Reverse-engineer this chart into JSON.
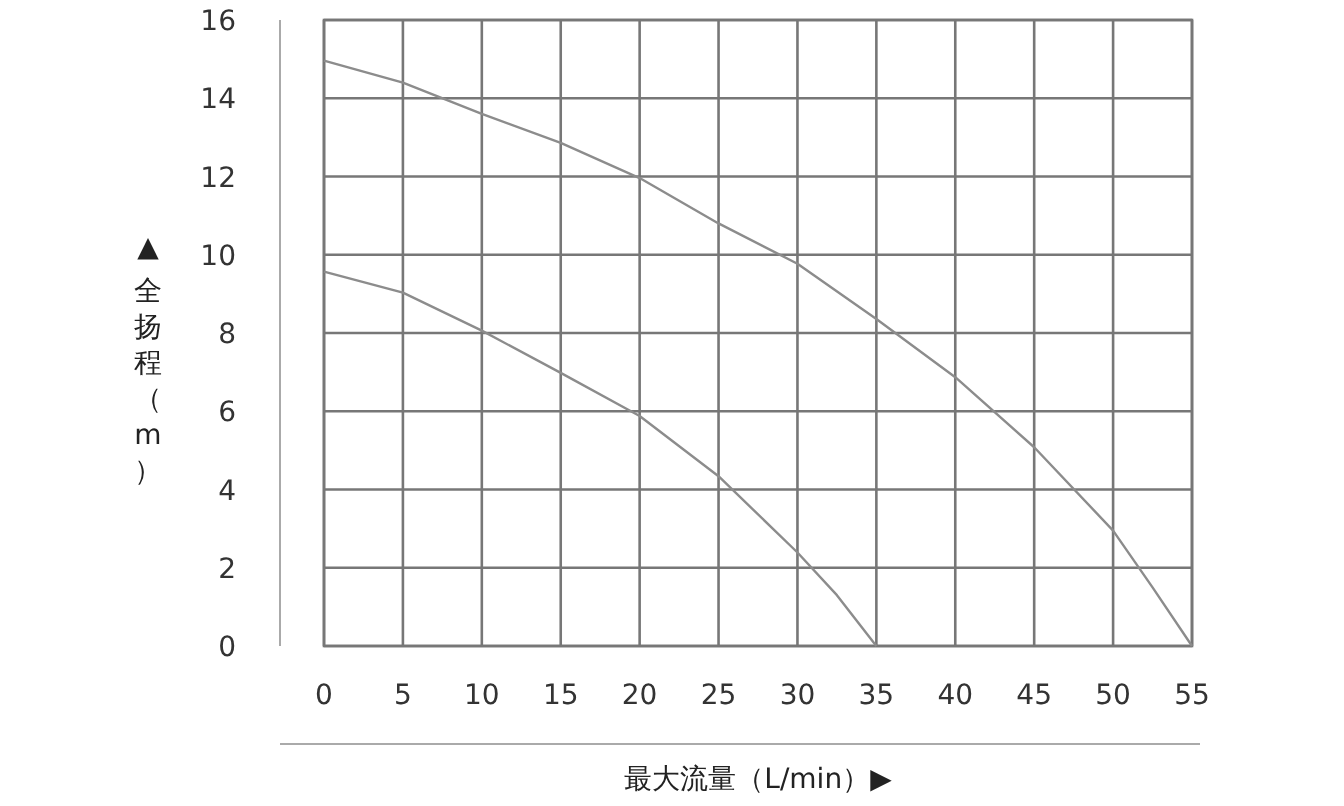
{
  "chart_data": {
    "type": "line",
    "xlabel": "最大流量（L/min）▶",
    "ylabel": "▲ 全扬程（m）",
    "xlim": [
      0,
      55
    ],
    "ylim": [
      0,
      16
    ],
    "xticks": [
      0,
      5,
      10,
      15,
      20,
      25,
      30,
      35,
      40,
      45,
      50,
      55
    ],
    "yticks": [
      0,
      2,
      4,
      6,
      8,
      10,
      12,
      14,
      16
    ],
    "grid": true,
    "marker": "none",
    "line_style": "solid",
    "series": [
      {
        "color": "#8c8c8c",
        "x": [
          0,
          5,
          10,
          15,
          20,
          25,
          30,
          35,
          40,
          45,
          50,
          52.5,
          55
        ],
        "values": [
          14.96,
          14.4,
          13.6,
          12.86,
          11.96,
          10.8,
          9.77,
          8.36,
          6.87,
          5.08,
          2.95,
          1.5,
          0
        ]
      },
      {
        "color": "#8c8c8c",
        "x": [
          0,
          5,
          10,
          15,
          20,
          25,
          30,
          32.5,
          35
        ],
        "values": [
          9.57,
          9.03,
          8.06,
          6.98,
          5.88,
          4.34,
          2.39,
          1.3,
          0
        ]
      }
    ]
  }
}
